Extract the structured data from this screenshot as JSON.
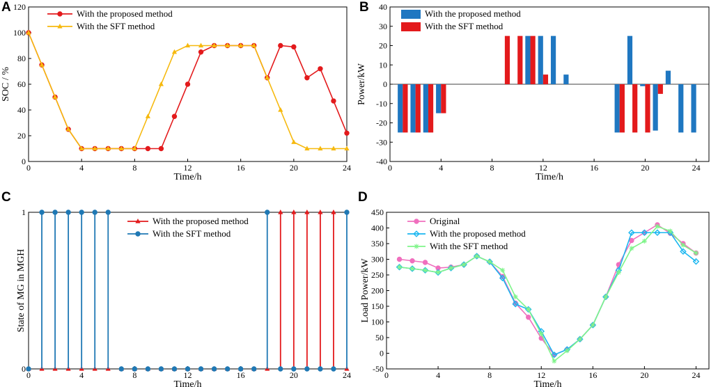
{
  "figure_title": "",
  "colors": {
    "red": "#e31a1c",
    "gold": "#f6b90f",
    "blue": "#1f77c1",
    "teal": "#1f78b4",
    "pink": "#f06fbe",
    "cyan": "#19b6f0",
    "green": "#7ff48a"
  },
  "chart_data": [
    {
      "panel": "A",
      "type": "line",
      "xlabel": "Time/h",
      "ylabel": "SOC / %",
      "xlim": [
        0,
        24
      ],
      "ylim": [
        0,
        120
      ],
      "xticks": [
        0,
        4,
        8,
        12,
        16,
        20,
        24
      ],
      "yticks": [
        0,
        20,
        40,
        60,
        80,
        100,
        120
      ],
      "x": [
        0,
        1,
        2,
        3,
        4,
        5,
        6,
        7,
        8,
        9,
        10,
        11,
        12,
        13,
        14,
        15,
        16,
        17,
        18,
        19,
        20,
        21,
        22,
        23,
        24
      ],
      "series": [
        {
          "name": "With the proposed method",
          "color": "#e31a1c",
          "marker": "circle",
          "values": [
            100,
            75,
            50,
            25,
            10,
            10,
            10,
            10,
            10,
            10,
            10,
            35,
            60,
            85,
            90,
            90,
            90,
            90,
            65,
            90,
            89,
            65,
            72,
            47,
            22
          ]
        },
        {
          "name": "With the SFT method",
          "color": "#f6b90f",
          "marker": "triangle",
          "values": [
            100,
            75,
            50,
            25,
            10,
            10,
            10,
            10,
            10,
            35,
            60,
            85,
            90,
            90,
            90,
            90,
            90,
            90,
            65,
            40,
            15,
            10,
            10,
            10,
            10
          ]
        }
      ]
    },
    {
      "panel": "B",
      "type": "bar",
      "xlabel": "Time/h",
      "ylabel": "Power/kW",
      "xlim": [
        0,
        25
      ],
      "ylim": [
        -40,
        40
      ],
      "xticks": [
        0,
        4,
        8,
        12,
        16,
        20,
        24
      ],
      "yticks": [
        -40,
        -30,
        -20,
        -10,
        0,
        10,
        20,
        30,
        40
      ],
      "x": [
        1,
        2,
        3,
        4,
        5,
        6,
        7,
        8,
        9,
        10,
        11,
        12,
        13,
        14,
        15,
        16,
        17,
        18,
        19,
        20,
        21,
        22,
        23,
        24
      ],
      "series": [
        {
          "name": "With the proposed method",
          "color": "#1f77c1",
          "values": [
            -25,
            -25,
            -25,
            -15,
            0,
            0,
            0,
            0,
            0,
            0,
            25,
            25,
            25,
            5,
            0,
            0,
            0,
            -25,
            25,
            -1,
            -24,
            7,
            -25,
            -25
          ]
        },
        {
          "name": "With the SFT method",
          "color": "#e31a1c",
          "values": [
            -25,
            -25,
            -25,
            -15,
            0,
            0,
            0,
            0,
            25,
            25,
            25,
            5,
            0,
            0,
            0,
            0,
            0,
            -25,
            -25,
            -25,
            -5,
            0,
            0,
            0
          ]
        }
      ]
    },
    {
      "panel": "C",
      "type": "stem",
      "xlabel": "Time/h",
      "ylabel": "State of MG in MGH",
      "xlim": [
        0,
        24
      ],
      "ylim": [
        0,
        1
      ],
      "xticks": [
        0,
        4,
        8,
        12,
        16,
        20,
        24
      ],
      "yticks": [
        0,
        1
      ],
      "x": [
        0,
        1,
        2,
        3,
        4,
        5,
        6,
        7,
        8,
        9,
        10,
        11,
        12,
        13,
        14,
        15,
        16,
        17,
        18,
        19,
        20,
        21,
        22,
        23,
        24
      ],
      "series": [
        {
          "name": "With the proposed method",
          "color": "#e31a1c",
          "marker": "triangle",
          "values": [
            0,
            0,
            0,
            0,
            0,
            0,
            0,
            0,
            0,
            0,
            0,
            0,
            0,
            0,
            0,
            0,
            0,
            0,
            0,
            1,
            1,
            1,
            1,
            1,
            0
          ]
        },
        {
          "name": "With the SFT method",
          "color": "#1f78b4",
          "marker": "circle",
          "values": [
            0,
            1,
            1,
            1,
            1,
            1,
            1,
            0,
            0,
            0,
            0,
            0,
            0,
            0,
            0,
            0,
            0,
            0,
            1,
            0,
            0,
            0,
            0,
            0,
            1
          ]
        }
      ]
    },
    {
      "panel": "D",
      "type": "line",
      "xlabel": "Time/h",
      "ylabel": "Load Power/kW",
      "xlim": [
        0,
        25
      ],
      "ylim": [
        -50,
        450
      ],
      "xticks": [
        0,
        4,
        8,
        12,
        16,
        20,
        24
      ],
      "yticks": [
        -50,
        0,
        50,
        100,
        150,
        200,
        250,
        300,
        350,
        400,
        450
      ],
      "x": [
        1,
        2,
        3,
        4,
        5,
        6,
        7,
        8,
        9,
        10,
        11,
        12,
        13,
        14,
        15,
        16,
        17,
        18,
        19,
        20,
        21,
        22,
        23,
        24
      ],
      "series": [
        {
          "name": "Original",
          "color": "#f06fbe",
          "marker": "circle",
          "values": [
            300,
            295,
            290,
            272,
            275,
            283,
            310,
            292,
            245,
            160,
            115,
            48,
            -5,
            12,
            45,
            90,
            180,
            283,
            360,
            385,
            410,
            383,
            350,
            320
          ]
        },
        {
          "name": "With the proposed method",
          "color": "#19b6f0",
          "marker": "diamond",
          "values": [
            275,
            270,
            265,
            258,
            272,
            283,
            310,
            292,
            240,
            157,
            140,
            70,
            -5,
            12,
            45,
            90,
            180,
            265,
            385,
            385,
            385,
            385,
            325,
            293
          ]
        },
        {
          "name": "With the SFT method",
          "color": "#7ff48a",
          "marker": "star",
          "values": [
            275,
            270,
            265,
            258,
            272,
            283,
            310,
            292,
            265,
            180,
            140,
            62,
            -25,
            8,
            45,
            90,
            180,
            258,
            335,
            358,
            405,
            390,
            345,
            320
          ]
        }
      ]
    }
  ]
}
